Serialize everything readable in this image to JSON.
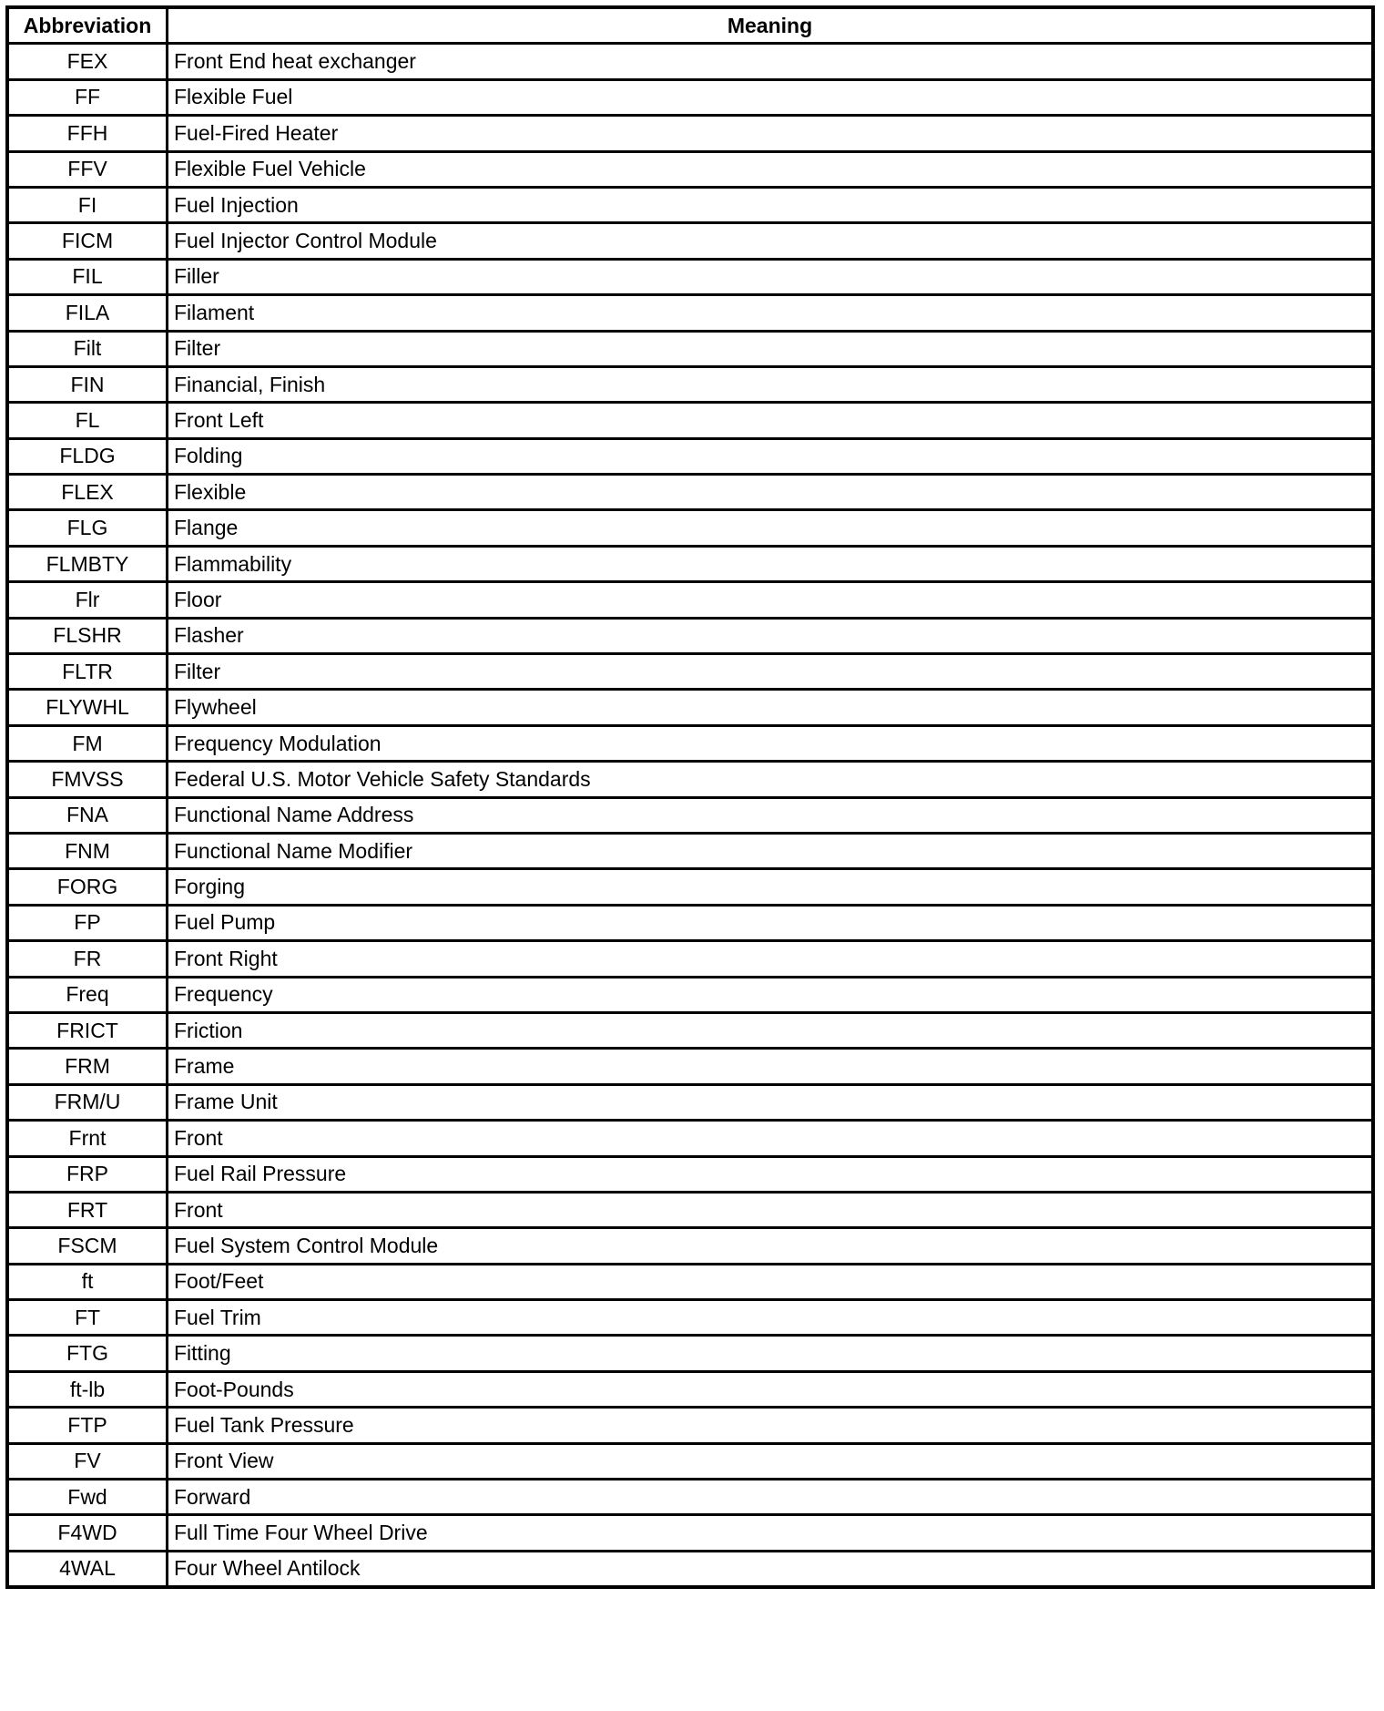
{
  "table": {
    "headers": [
      "Abbreviation",
      "Meaning"
    ],
    "rows": [
      [
        "FEX",
        "Front End heat exchanger"
      ],
      [
        "FF",
        "Flexible Fuel"
      ],
      [
        "FFH",
        "Fuel-Fired Heater"
      ],
      [
        "FFV",
        "Flexible Fuel Vehicle"
      ],
      [
        "FI",
        "Fuel Injection"
      ],
      [
        "FICM",
        "Fuel Injector Control Module"
      ],
      [
        "FIL",
        "Filler"
      ],
      [
        "FILA",
        "Filament"
      ],
      [
        "Filt",
        "Filter"
      ],
      [
        "FIN",
        "Financial, Finish"
      ],
      [
        "FL",
        "Front Left"
      ],
      [
        "FLDG",
        "Folding"
      ],
      [
        "FLEX",
        "Flexible"
      ],
      [
        "FLG",
        "Flange"
      ],
      [
        "FLMBTY",
        "Flammability"
      ],
      [
        "Flr",
        "Floor"
      ],
      [
        "FLSHR",
        "Flasher"
      ],
      [
        "FLTR",
        "Filter"
      ],
      [
        "FLYWHL",
        "Flywheel"
      ],
      [
        "FM",
        "Frequency Modulation"
      ],
      [
        "FMVSS",
        "Federal U.S. Motor Vehicle Safety Standards"
      ],
      [
        "FNA",
        "Functional Name Address"
      ],
      [
        "FNM",
        "Functional Name Modifier"
      ],
      [
        "FORG",
        "Forging"
      ],
      [
        "FP",
        "Fuel Pump"
      ],
      [
        "FR",
        "Front Right"
      ],
      [
        "Freq",
        "Frequency"
      ],
      [
        "FRICT",
        "Friction"
      ],
      [
        "FRM",
        "Frame"
      ],
      [
        "FRM/U",
        "Frame Unit"
      ],
      [
        "Frnt",
        "Front"
      ],
      [
        "FRP",
        "Fuel Rail Pressure"
      ],
      [
        "FRT",
        "Front"
      ],
      [
        "FSCM",
        "Fuel System Control Module"
      ],
      [
        "ft",
        "Foot/Feet"
      ],
      [
        "FT",
        "Fuel Trim"
      ],
      [
        "FTG",
        "Fitting"
      ],
      [
        "ft-lb",
        "Foot-Pounds"
      ],
      [
        "FTP",
        "Fuel Tank Pressure"
      ],
      [
        "FV",
        "Front View"
      ],
      [
        "Fwd",
        "Forward"
      ],
      [
        "F4WD",
        "Full Time Four Wheel Drive"
      ],
      [
        "4WAL",
        "Four Wheel Antilock"
      ]
    ]
  }
}
